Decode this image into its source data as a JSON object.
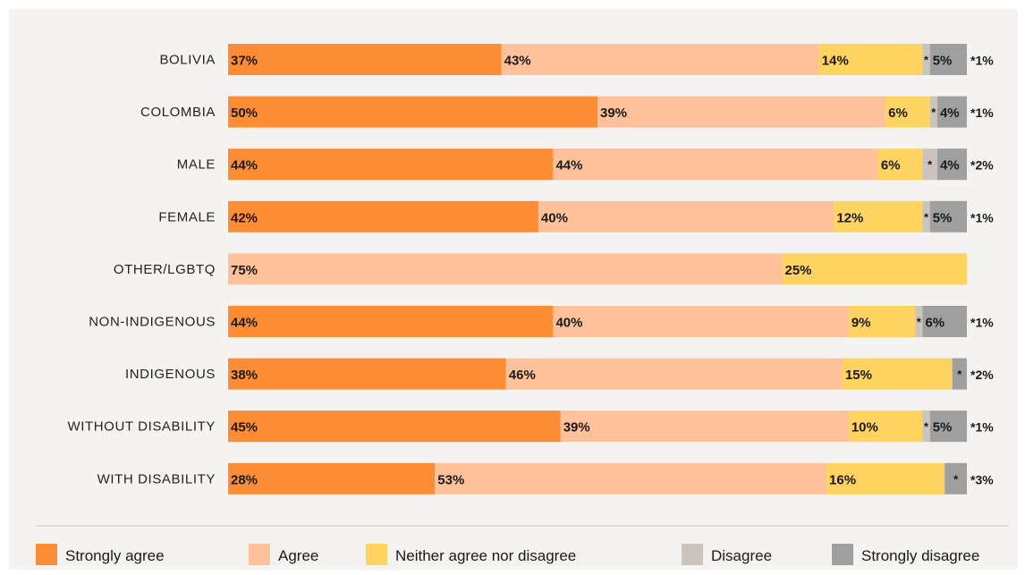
{
  "chart_data": {
    "type": "bar",
    "orientation": "horizontal",
    "stacked": true,
    "normalized": true,
    "legend_position": "bottom",
    "grid": false,
    "xlim": [
      0,
      100
    ],
    "categories": [
      "BOLIVIA",
      "COLOMBIA",
      "MALE",
      "FEMALE",
      "OTHER/LGBTQ",
      "NON-INDIGENOUS",
      "INDIGENOUS",
      "WITHOUT DISABILITY",
      "WITH DISABILITY"
    ],
    "series": [
      {
        "name": "Strongly agree",
        "color": "#fd8d35",
        "values": [
          37,
          50,
          44,
          42,
          0,
          44,
          38,
          45,
          28
        ]
      },
      {
        "name": "Agree",
        "color": "#fec19a",
        "values": [
          43,
          39,
          44,
          40,
          75,
          40,
          46,
          39,
          53
        ]
      },
      {
        "name": "Neither agree nor disagree",
        "color": "#fed35f",
        "values": [
          14,
          6,
          6,
          12,
          25,
          9,
          15,
          10,
          16
        ]
      },
      {
        "name": "Disagree",
        "color": "#cbc4bc",
        "values": [
          1,
          1,
          2,
          1,
          0,
          1,
          0,
          1,
          0
        ]
      },
      {
        "name": "Strongly disagree",
        "color": "#9f9f9f",
        "values": [
          5,
          4,
          4,
          5,
          0,
          6,
          2,
          5,
          3
        ]
      }
    ],
    "segment_labels": [
      [
        "37%",
        "43%",
        "14%",
        "*",
        "5%"
      ],
      [
        "50%",
        "39%",
        "6%",
        "*",
        "4%"
      ],
      [
        "44%",
        "44%",
        "6%",
        "*",
        "4%"
      ],
      [
        "42%",
        "40%",
        "12%",
        "*",
        "5%"
      ],
      [
        "",
        "75%",
        "25%",
        "",
        ""
      ],
      [
        "44%",
        "40%",
        "9%",
        "*",
        "6%"
      ],
      [
        "38%",
        "46%",
        "15%",
        "",
        "*"
      ],
      [
        "45%",
        "39%",
        "10%",
        "*",
        "5%"
      ],
      [
        "28%",
        "53%",
        "16%",
        "",
        "*"
      ]
    ],
    "disagree_footnotes": [
      "*1%",
      "*1%",
      "*2%",
      "*1%",
      "",
      "*1%",
      "*2%",
      "*1%",
      "*3%"
    ]
  }
}
